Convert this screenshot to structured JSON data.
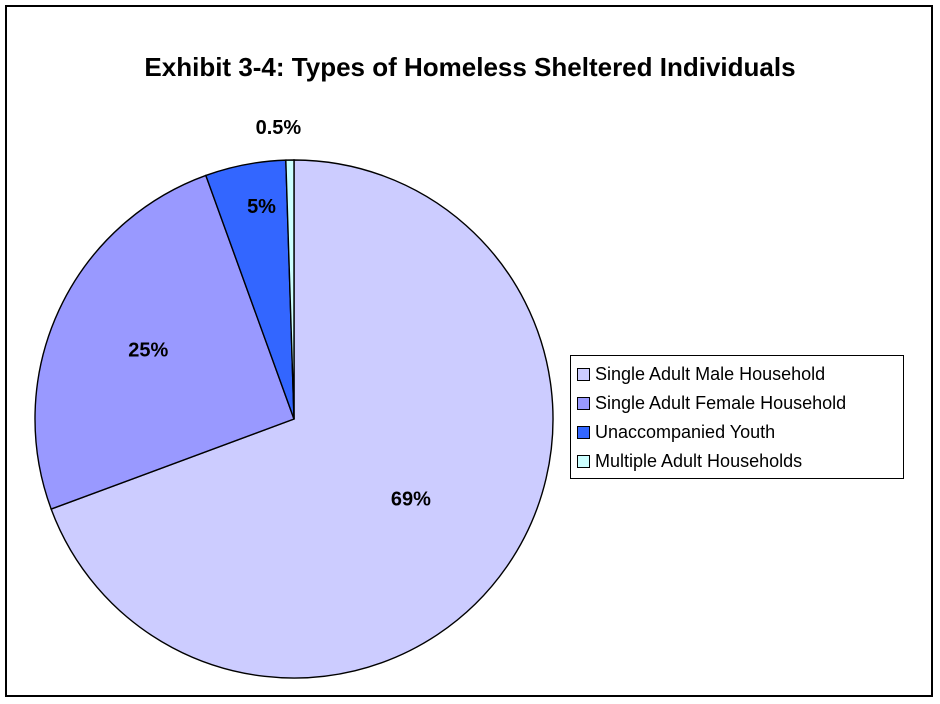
{
  "chart_data": {
    "type": "pie",
    "title": "Exhibit 3-4: Types of Homeless Sheltered Individuals",
    "categories": [
      "Single Adult Male Household",
      "Single Adult Female Household",
      "Unaccompanied Youth",
      "Multiple Adult Households"
    ],
    "values": [
      69,
      25,
      5,
      0.5
    ],
    "data_labels": [
      "69%",
      "25%",
      "5%",
      "0.5%"
    ],
    "colors": [
      "#CCCCFF",
      "#9999FF",
      "#3366FF",
      "#CCFFFF"
    ],
    "legend_position": "right",
    "start_angle_deg": 0,
    "direction": "clockwise"
  }
}
